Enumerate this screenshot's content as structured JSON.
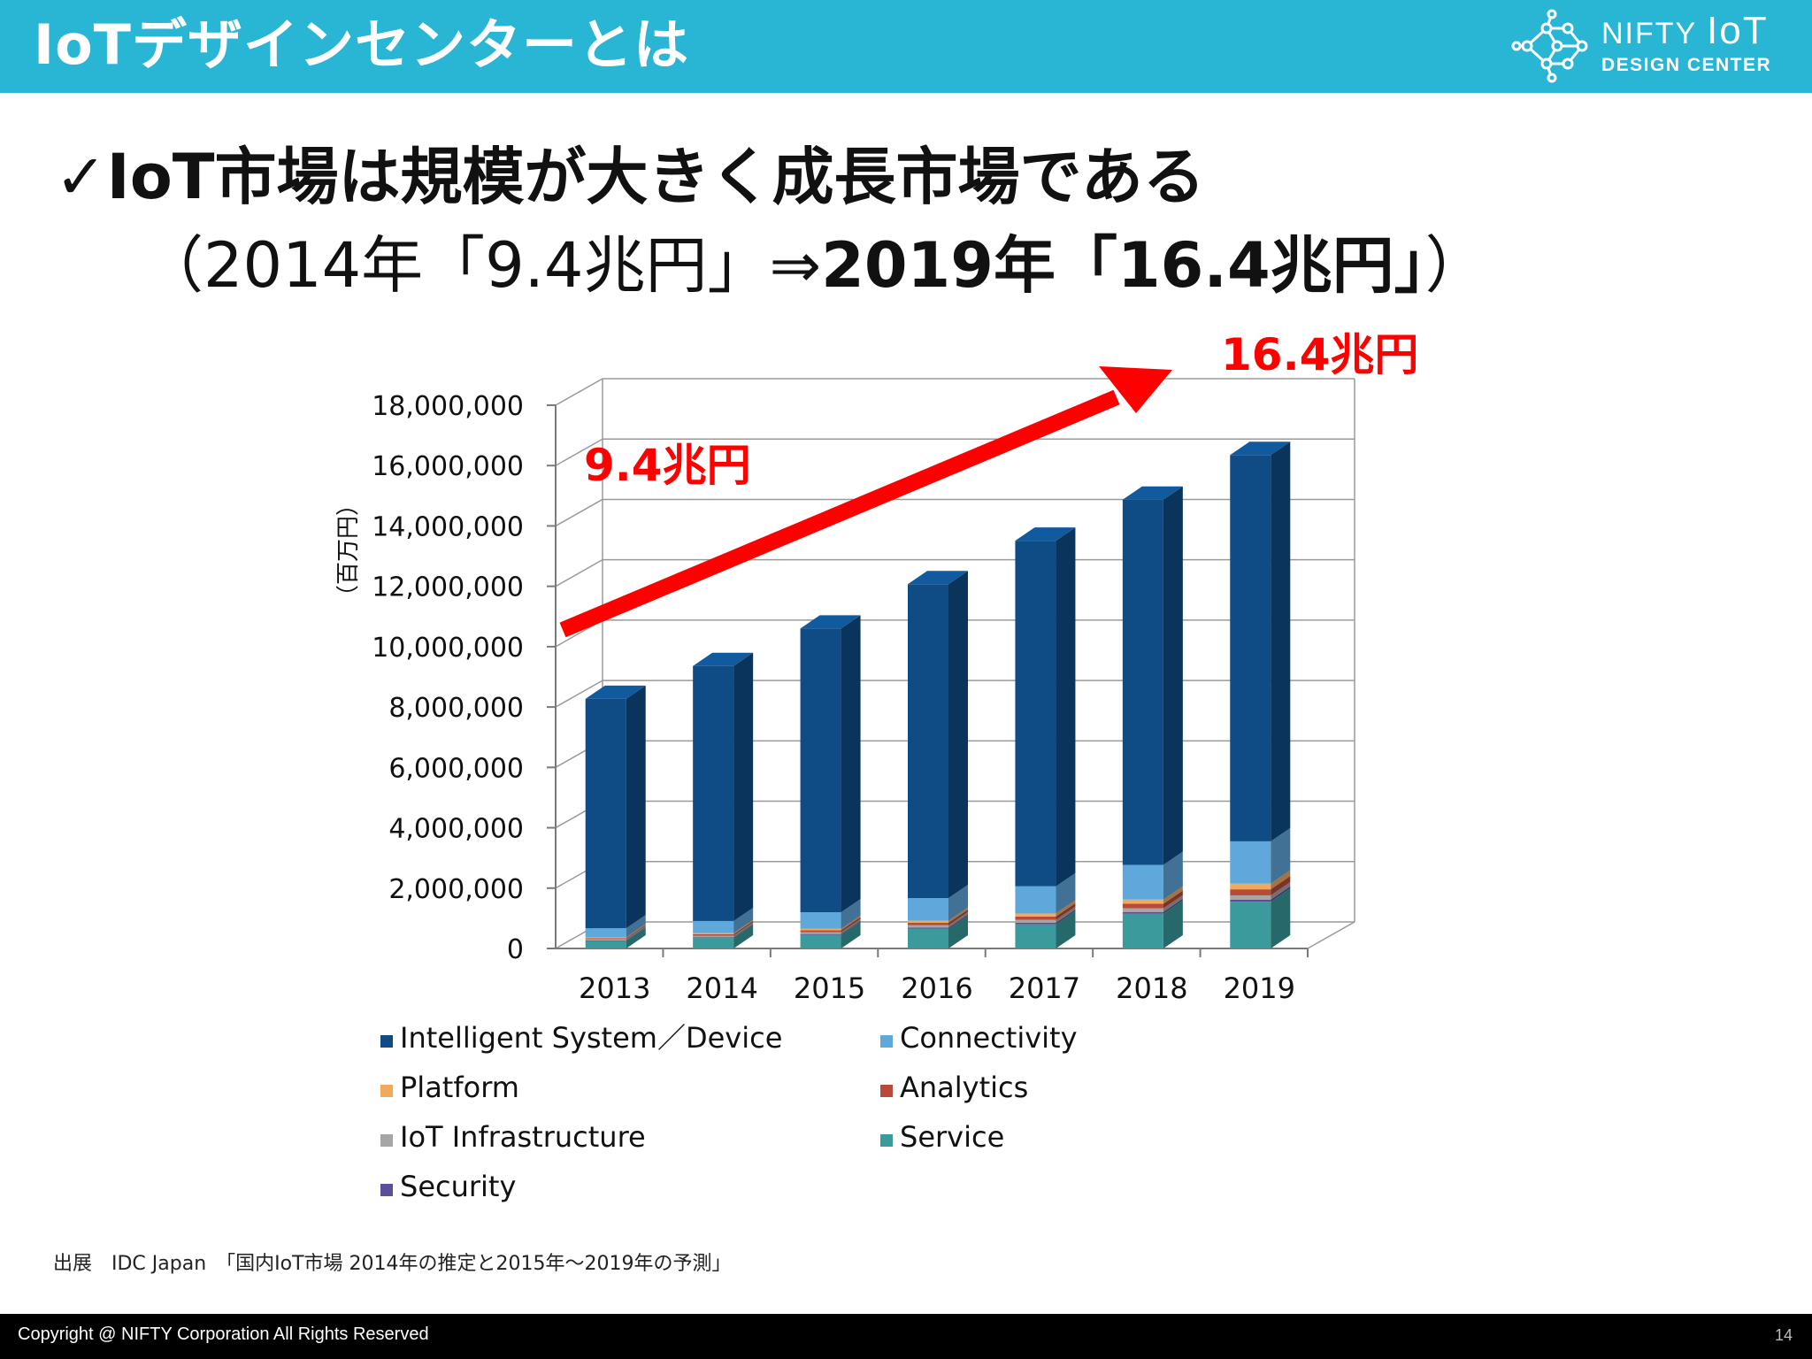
{
  "header": {
    "title": "IoTデザインセンターとは",
    "logo_line1_a": "NIFTY ",
    "logo_line1_b": "IoT",
    "logo_line2": "DESIGN CENTER"
  },
  "headline": "✓IoT市場は規模が大きく成長市場である",
  "subline": {
    "normal": "（2014年「9.4兆円」⇒",
    "bold": "2019年「16.4兆円」",
    "close": "）"
  },
  "source": "出展　IDC Japan　「国内IoT市場 2014年の推定と2015年～2019年の予測」",
  "footer": {
    "copyright": "Copyright @ NIFTY Corporation All Rights Reserved",
    "page": "14"
  },
  "colors": {
    "header_bg": "#29b6d4",
    "arrow": "#ff0000"
  },
  "chart_data": {
    "type": "bar",
    "stacked": true,
    "style": "3d",
    "title": "",
    "xlabel": "",
    "ylabel": "（百万円）",
    "ylim": [
      0,
      18000000
    ],
    "yticks": [
      0,
      2000000,
      4000000,
      6000000,
      8000000,
      10000000,
      12000000,
      14000000,
      16000000,
      18000000
    ],
    "ytick_labels": [
      "0",
      "2,000,000",
      "4,000,000",
      "6,000,000",
      "8,000,000",
      "10,000,000",
      "12,000,000",
      "14,000,000",
      "16,000,000",
      "18,000,000"
    ],
    "categories": [
      "2013",
      "2014",
      "2015",
      "2016",
      "2017",
      "2018",
      "2019"
    ],
    "series": [
      {
        "name": "Service",
        "color": "#3a9a9c",
        "values": [
          250000,
          350000,
          450000,
          650000,
          800000,
          1150000,
          1550000
        ]
      },
      {
        "name": "Security",
        "color": "#5a4f9a",
        "values": [
          20000,
          25000,
          30000,
          40000,
          50000,
          60000,
          70000
        ]
      },
      {
        "name": "IoT Infrastructure",
        "color": "#a6a6a6",
        "values": [
          40000,
          50000,
          60000,
          80000,
          100000,
          120000,
          140000
        ]
      },
      {
        "name": "Analytics",
        "color": "#b84a3a",
        "values": [
          30000,
          45000,
          60000,
          80000,
          110000,
          150000,
          200000
        ]
      },
      {
        "name": "Platform",
        "color": "#f2a95c",
        "values": [
          30000,
          40000,
          50000,
          70000,
          100000,
          140000,
          190000
        ]
      },
      {
        "name": "Connectivity",
        "color": "#5fa8dc",
        "values": [
          300000,
          400000,
          550000,
          750000,
          900000,
          1150000,
          1400000
        ]
      },
      {
        "name": "Intelligent System／Device",
        "color": "#0f4c86",
        "values": [
          7600000,
          8450000,
          9400000,
          10400000,
          11450000,
          12100000,
          12800000
        ]
      }
    ],
    "legend": {
      "placement": "bottom",
      "entries": [
        {
          "name": "Intelligent System／Device",
          "color": "#0f4c86"
        },
        {
          "name": "Connectivity",
          "color": "#5fa8dc"
        },
        {
          "name": "Platform",
          "color": "#f2a95c"
        },
        {
          "name": "Analytics",
          "color": "#b84a3a"
        },
        {
          "name": "IoT Infrastructure",
          "color": "#a6a6a6"
        },
        {
          "name": "Service",
          "color": "#3a9a9c"
        },
        {
          "name": "Security",
          "color": "#5a4f9a"
        }
      ]
    },
    "annotations": {
      "start_label": "9.4兆円",
      "end_label": "16.4兆円"
    }
  }
}
